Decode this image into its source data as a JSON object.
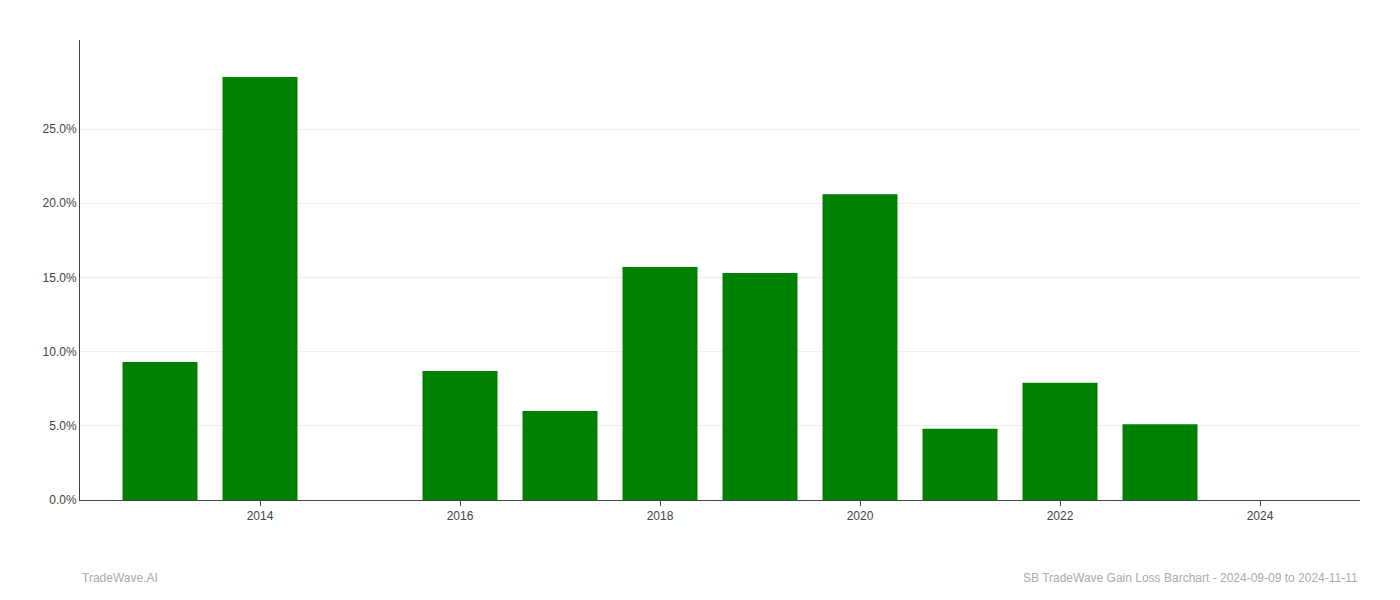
{
  "chart_data": {
    "type": "bar",
    "x": [
      2013,
      2014,
      2016,
      2017,
      2018,
      2019,
      2020,
      2021,
      2022,
      2023
    ],
    "values": [
      0.093,
      0.285,
      0.087,
      0.06,
      0.157,
      0.153,
      0.206,
      0.048,
      0.079,
      0.051
    ],
    "color": "#008000",
    "xlim": [
      2012.2,
      2025.0
    ],
    "xticks": [
      2014,
      2016,
      2018,
      2020,
      2022,
      2024
    ],
    "ylim": [
      0,
      0.31
    ],
    "yticks": [
      {
        "value": 0.0,
        "label": "0.0%"
      },
      {
        "value": 0.05,
        "label": "5.0%"
      },
      {
        "value": 0.1,
        "label": "10.0%"
      },
      {
        "value": 0.15,
        "label": "15.0%"
      },
      {
        "value": 0.2,
        "label": "20.0%"
      },
      {
        "value": 0.25,
        "label": "25.0%"
      }
    ],
    "grid": true,
    "annotations": [
      "TradeWave.AI",
      "SB TradeWave Gain Loss Barchart - 2024-09-09 to 2024-11-11"
    ]
  }
}
